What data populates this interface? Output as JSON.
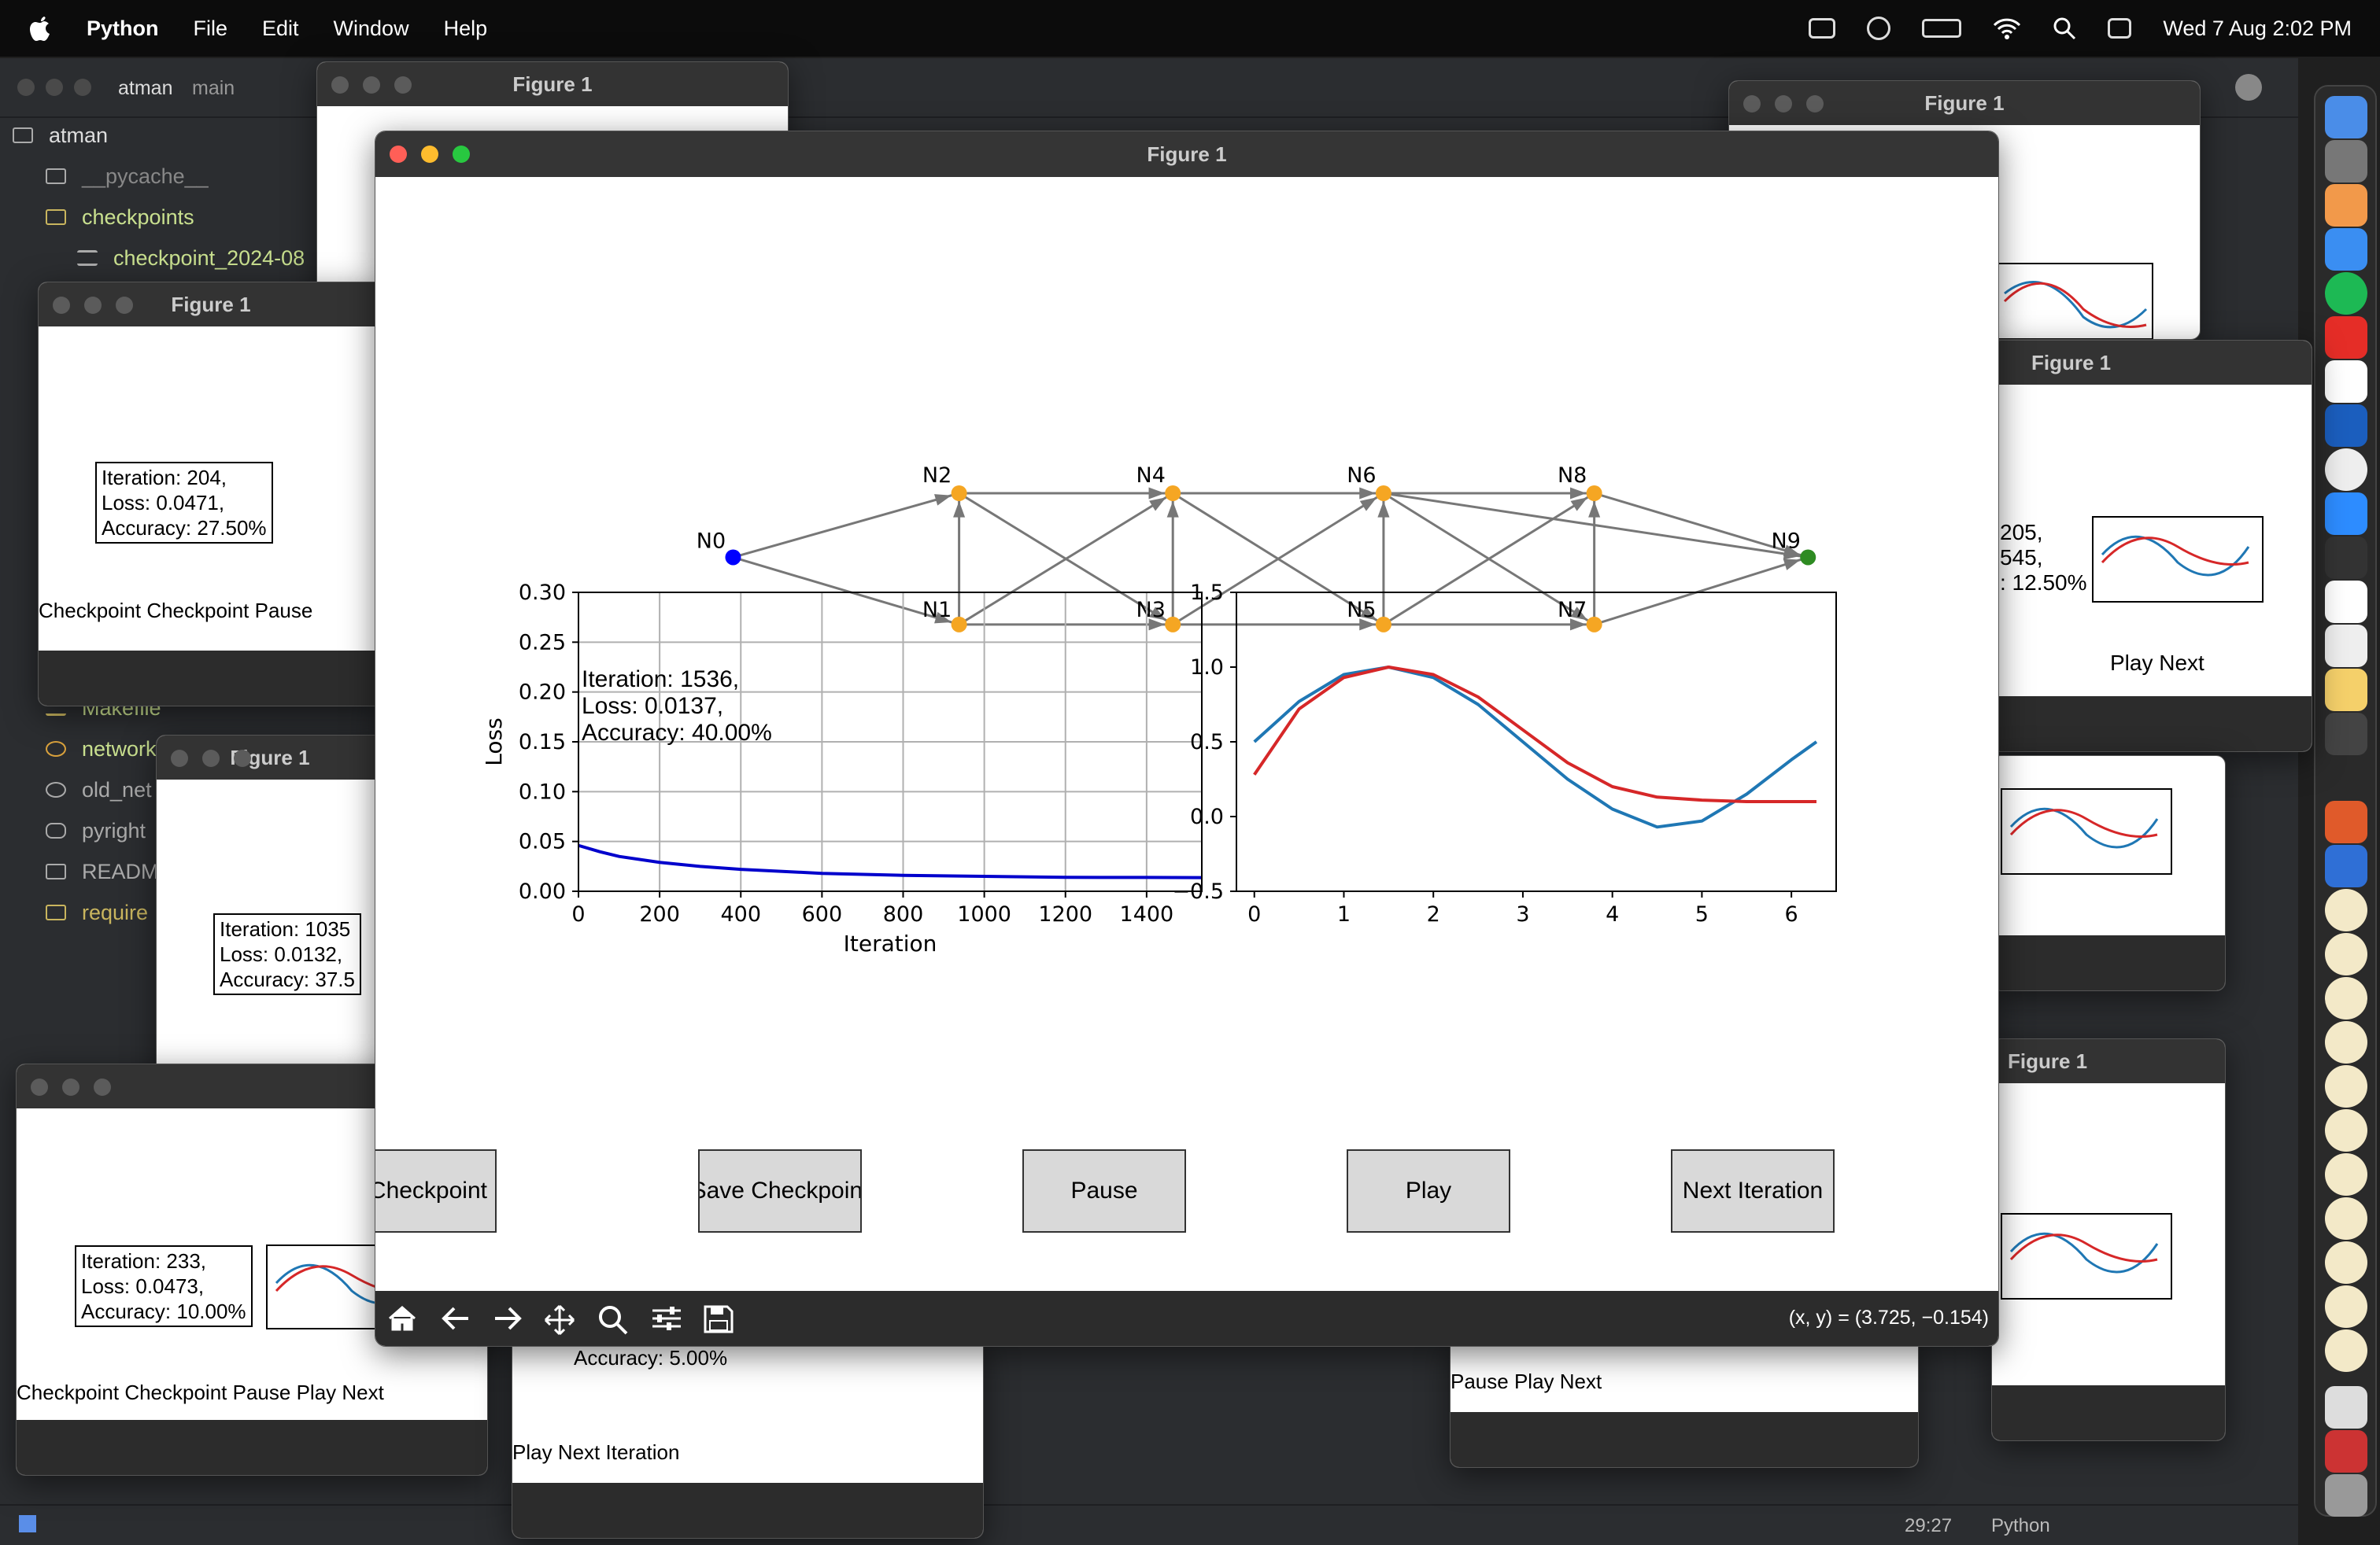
{
  "menubar": {
    "app": "Python",
    "items": [
      "File",
      "Edit",
      "Window",
      "Help"
    ],
    "datetime": "Wed 7 Aug  2:02 PM"
  },
  "ide": {
    "project": "atman",
    "branch": "main",
    "tree": [
      {
        "label": "atman",
        "icon": "folder-icon"
      },
      {
        "label": "__pycache__",
        "icon": "folder-icon"
      },
      {
        "label": "checkpoints",
        "icon": "folder-icon"
      },
      {
        "label": "checkpoint_2024-08",
        "icon": "file-icon"
      },
      {
        "label": "Makefile",
        "icon": "makefile-icon"
      },
      {
        "label": "network",
        "icon": "python-file-icon"
      },
      {
        "label": "old_net",
        "icon": "python-file-icon"
      },
      {
        "label": "pyright",
        "icon": "database-icon"
      },
      {
        "label": "READM",
        "icon": "book-icon"
      },
      {
        "label": "require",
        "icon": "book-icon"
      }
    ],
    "status": {
      "position": "29:27",
      "language": "Python"
    }
  },
  "main_window": {
    "title": "Figure 1",
    "nodes": [
      "N0",
      "N1",
      "N2",
      "N3",
      "N4",
      "N5",
      "N6",
      "N7",
      "N8",
      "N9"
    ],
    "info": [
      "Iteration: 1536,",
      "Loss: 0.0137,",
      "Accuracy: 40.00%"
    ],
    "buttons": [
      "Load Checkpoint",
      "Save Checkpoint",
      "Pause",
      "Play",
      "Next Iteration"
    ],
    "coords": "(x, y) = (3.725, −0.154)",
    "colors": {
      "input": "#0000ff",
      "hidden": "#f5a623",
      "output": "#2e8b22",
      "loss": "#0000cc",
      "target": "#1f77b4",
      "pred": "#d62728"
    }
  },
  "bg_windows": {
    "title": "Figure 1",
    "w1": {
      "info": [
        "Iteration: 204,",
        "Loss: 0.0471,",
        "Accuracy: 27.50%"
      ]
    },
    "w2": {
      "info": [
        "Iteration: 1035",
        "Loss: 0.0132,",
        "Accuracy: 37.5"
      ]
    },
    "w3": {
      "info": [
        "Iteration: 233,",
        "Loss: 0.0473,",
        "Accuracy: 10.00%"
      ]
    },
    "w4": {
      "info": [
        "Accuracy: 5.00%"
      ]
    },
    "w5": {
      "info": [
        "205,",
        "545,",
        ": 12.50%"
      ]
    },
    "buttons": [
      "Checkpoint",
      "Checkpoint",
      "Pause",
      "Play",
      "Next",
      "Iteration"
    ]
  },
  "chart_data": [
    {
      "type": "line",
      "title": "",
      "xlabel": "Iteration",
      "ylabel": "Loss",
      "xlim": [
        0,
        1536
      ],
      "ylim": [
        0,
        0.3
      ],
      "xticks": [
        0,
        200,
        400,
        600,
        800,
        1000,
        1200,
        1400
      ],
      "yticks": [
        "0.00",
        "0.05",
        "0.10",
        "0.15",
        "0.20",
        "0.25",
        "0.30"
      ],
      "grid": true,
      "series": [
        {
          "x": [
            0,
            50,
            100,
            200,
            300,
            400,
            600,
            800,
            1000,
            1200,
            1400,
            1536
          ],
          "values": [
            0.046,
            0.04,
            0.035,
            0.029,
            0.025,
            0.022,
            0.018,
            0.016,
            0.015,
            0.014,
            0.0139,
            0.0137
          ]
        }
      ]
    },
    {
      "type": "line",
      "title": "",
      "xlim": [
        -0.2,
        6.5
      ],
      "ylim": [
        -0.5,
        1.5
      ],
      "xticks": [
        "0",
        "1",
        "2",
        "3",
        "4",
        "5",
        "6"
      ],
      "yticks": [
        "−0.5",
        "0.0",
        "0.5",
        "1.0",
        "1.5"
      ],
      "grid": false,
      "series": [
        {
          "x": [
            0,
            0.5,
            1,
            1.5,
            2,
            2.5,
            3,
            3.5,
            4,
            4.5,
            5,
            5.5,
            6,
            6.28
          ],
          "values": [
            0.5,
            0.77,
            0.95,
            1.0,
            0.93,
            0.75,
            0.5,
            0.25,
            0.05,
            -0.07,
            -0.03,
            0.15,
            0.38,
            0.5
          ]
        },
        {
          "x": [
            0,
            0.5,
            1,
            1.5,
            2,
            2.5,
            3,
            3.5,
            4,
            4.5,
            5,
            5.5,
            6,
            6.28
          ],
          "values": [
            0.28,
            0.72,
            0.93,
            1.0,
            0.95,
            0.8,
            0.58,
            0.36,
            0.2,
            0.13,
            0.11,
            0.1,
            0.1,
            0.1
          ]
        }
      ]
    }
  ]
}
